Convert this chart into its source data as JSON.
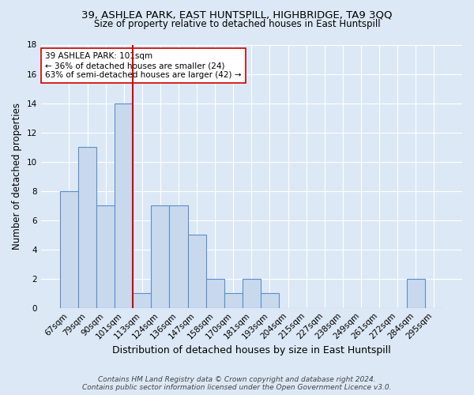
{
  "title1": "39, ASHLEA PARK, EAST HUNTSPILL, HIGHBRIDGE, TA9 3QQ",
  "title2": "Size of property relative to detached houses in East Huntspill",
  "xlabel": "Distribution of detached houses by size in East Huntspill",
  "ylabel": "Number of detached properties",
  "categories": [
    "67sqm",
    "79sqm",
    "90sqm",
    "101sqm",
    "113sqm",
    "124sqm",
    "136sqm",
    "147sqm",
    "158sqm",
    "170sqm",
    "181sqm",
    "193sqm",
    "204sqm",
    "215sqm",
    "227sqm",
    "238sqm",
    "249sqm",
    "261sqm",
    "272sqm",
    "284sqm",
    "295sqm"
  ],
  "values": [
    8,
    11,
    7,
    14,
    1,
    7,
    7,
    5,
    2,
    1,
    2,
    1,
    0,
    0,
    0,
    0,
    0,
    0,
    0,
    2,
    0
  ],
  "bar_color": "#c9d9ed",
  "bar_edge_color": "#5b8fc9",
  "vline_color": "#cc0000",
  "annotation_text": "39 ASHLEA PARK: 101sqm\n← 36% of detached houses are smaller (24)\n63% of semi-detached houses are larger (42) →",
  "annotation_box_color": "white",
  "annotation_box_edge": "#cc0000",
  "ylim": [
    0,
    18
  ],
  "yticks": [
    0,
    2,
    4,
    6,
    8,
    10,
    12,
    14,
    16,
    18
  ],
  "footer": "Contains HM Land Registry data © Crown copyright and database right 2024.\nContains public sector information licensed under the Open Government Licence v3.0.",
  "bg_color": "#dce8f5",
  "plot_bg_color": "#dce8f5",
  "title1_fontsize": 9.5,
  "title2_fontsize": 8.5,
  "xlabel_fontsize": 9,
  "ylabel_fontsize": 8.5,
  "tick_fontsize": 7.5,
  "footer_fontsize": 6.5,
  "annot_fontsize": 7.5
}
